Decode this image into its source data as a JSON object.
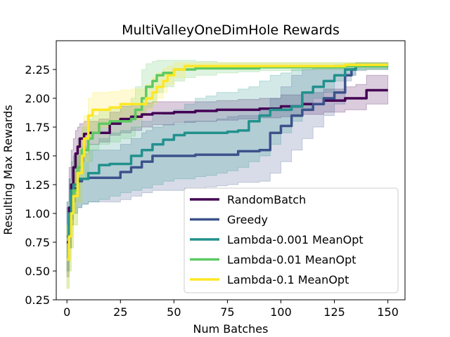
{
  "chart_data": {
    "type": "line",
    "title": "MultiValleyOneDimHole Rewards",
    "xlabel": "Num Batches",
    "ylabel": "Resulting Max Rewards",
    "xlim": [
      -5,
      158
    ],
    "ylim": [
      0.25,
      2.5
    ],
    "xticks": [
      0,
      25,
      50,
      75,
      100,
      125,
      150
    ],
    "yticks": [
      0.25,
      0.5,
      0.75,
      1.0,
      1.25,
      1.5,
      1.75,
      2.0,
      2.25
    ],
    "xtick_labels": [
      "0",
      "25",
      "50",
      "75",
      "100",
      "125",
      "150"
    ],
    "ytick_labels": [
      "0.25",
      "0.50",
      "0.75",
      "1.00",
      "1.25",
      "1.50",
      "1.75",
      "2.00",
      "2.25"
    ],
    "grid": false,
    "legend_position": "lower right",
    "series": [
      {
        "name": "RandomBatch",
        "color": "#440154",
        "x": [
          0,
          1,
          2,
          3,
          4,
          5,
          6,
          8,
          10,
          15,
          20,
          25,
          30,
          35,
          40,
          50,
          60,
          70,
          80,
          90,
          100,
          110,
          120,
          130,
          135,
          138,
          140,
          150
        ],
        "y": [
          0.75,
          1.05,
          1.25,
          1.4,
          1.52,
          1.58,
          1.65,
          1.69,
          1.7,
          1.7,
          1.78,
          1.82,
          1.84,
          1.86,
          1.87,
          1.88,
          1.89,
          1.9,
          1.9,
          1.91,
          1.93,
          1.95,
          1.98,
          2.0,
          2.0,
          2.0,
          2.07,
          2.07
        ],
        "lower": [
          0.45,
          0.7,
          0.95,
          1.1,
          1.25,
          1.35,
          1.45,
          1.55,
          1.6,
          1.62,
          1.68,
          1.7,
          1.72,
          1.75,
          1.77,
          1.79,
          1.8,
          1.81,
          1.82,
          1.83,
          1.84,
          1.86,
          1.88,
          1.9,
          1.9,
          1.9,
          1.95,
          1.95
        ],
        "upper": [
          1.05,
          1.4,
          1.55,
          1.65,
          1.72,
          1.75,
          1.78,
          1.8,
          1.8,
          1.82,
          1.88,
          1.93,
          1.95,
          1.96,
          1.97,
          1.97,
          1.97,
          1.98,
          1.99,
          2.0,
          2.03,
          2.05,
          2.08,
          2.1,
          2.12,
          2.12,
          2.2,
          2.2
        ]
      },
      {
        "name": "Greedy",
        "color": "#3b528b",
        "x": [
          0,
          1,
          2,
          3,
          5,
          7,
          10,
          15,
          20,
          25,
          30,
          35,
          37,
          40,
          45,
          50,
          55,
          60,
          65,
          70,
          75,
          80,
          90,
          95,
          100,
          105,
          110,
          115,
          120,
          125,
          130,
          133,
          135,
          140,
          150
        ],
        "y": [
          0.8,
          1.0,
          1.15,
          1.22,
          1.28,
          1.3,
          1.31,
          1.31,
          1.31,
          1.36,
          1.4,
          1.45,
          1.45,
          1.5,
          1.5,
          1.5,
          1.5,
          1.51,
          1.51,
          1.51,
          1.51,
          1.54,
          1.55,
          1.7,
          1.76,
          1.85,
          1.9,
          1.95,
          2.0,
          2.05,
          2.2,
          2.25,
          2.28,
          2.28,
          2.28
        ],
        "lower": [
          0.5,
          0.7,
          0.9,
          1.0,
          1.05,
          1.08,
          1.1,
          1.1,
          1.1,
          1.12,
          1.15,
          1.18,
          1.18,
          1.2,
          1.2,
          1.2,
          1.22,
          1.22,
          1.23,
          1.24,
          1.25,
          1.27,
          1.28,
          1.35,
          1.45,
          1.55,
          1.65,
          1.75,
          1.85,
          1.95,
          2.15,
          2.2,
          2.24,
          2.25,
          2.25
        ],
        "upper": [
          1.1,
          1.3,
          1.4,
          1.45,
          1.5,
          1.52,
          1.55,
          1.55,
          1.55,
          1.6,
          1.65,
          1.7,
          1.72,
          1.75,
          1.77,
          1.78,
          1.8,
          1.8,
          1.8,
          1.82,
          1.84,
          1.85,
          1.9,
          2.0,
          2.1,
          2.2,
          2.25,
          2.27,
          2.28,
          2.28,
          2.29,
          2.3,
          2.31,
          2.31,
          2.31
        ]
      },
      {
        "name": "Lambda-0.001 MeanOpt",
        "color": "#21918c",
        "x": [
          0,
          1,
          2,
          3,
          5,
          7,
          10,
          15,
          20,
          25,
          30,
          35,
          40,
          45,
          50,
          55,
          60,
          65,
          70,
          75,
          80,
          85,
          90,
          95,
          100,
          105,
          110,
          115,
          120,
          125,
          130,
          135,
          140,
          150
        ],
        "y": [
          0.8,
          1.0,
          1.2,
          1.25,
          1.3,
          1.3,
          1.35,
          1.42,
          1.43,
          1.43,
          1.5,
          1.55,
          1.6,
          1.64,
          1.68,
          1.7,
          1.7,
          1.7,
          1.7,
          1.71,
          1.72,
          1.8,
          1.85,
          1.9,
          1.9,
          1.93,
          2.05,
          2.1,
          2.15,
          2.2,
          2.25,
          2.28,
          2.28,
          2.28
        ],
        "lower": [
          0.5,
          0.7,
          0.9,
          1.0,
          1.05,
          1.08,
          1.1,
          1.12,
          1.15,
          1.18,
          1.2,
          1.22,
          1.25,
          1.28,
          1.3,
          1.3,
          1.32,
          1.33,
          1.35,
          1.37,
          1.4,
          1.45,
          1.5,
          1.6,
          1.7,
          1.8,
          1.9,
          2.0,
          2.05,
          2.15,
          2.2,
          2.25,
          2.25,
          2.25
        ],
        "upper": [
          1.1,
          1.3,
          1.45,
          1.5,
          1.55,
          1.58,
          1.6,
          1.65,
          1.7,
          1.72,
          1.75,
          1.8,
          1.85,
          1.88,
          1.9,
          1.95,
          2.0,
          2.02,
          2.05,
          2.05,
          2.08,
          2.1,
          2.15,
          2.2,
          2.22,
          2.25,
          2.25,
          2.28,
          2.28,
          2.29,
          2.3,
          2.31,
          2.31,
          2.31
        ]
      },
      {
        "name": "Lambda-0.01 MeanOpt",
        "color": "#5ec962",
        "x": [
          0,
          1,
          2,
          3,
          5,
          7,
          10,
          12,
          15,
          20,
          25,
          30,
          32,
          35,
          37,
          40,
          42,
          45,
          50,
          55,
          60,
          70,
          80,
          90,
          100,
          110,
          120,
          130,
          140,
          150
        ],
        "y": [
          0.6,
          0.8,
          1.0,
          1.2,
          1.4,
          1.55,
          1.65,
          1.7,
          1.78,
          1.8,
          1.8,
          1.82,
          1.9,
          2.0,
          2.1,
          2.15,
          2.2,
          2.22,
          2.25,
          2.25,
          2.26,
          2.26,
          2.26,
          2.27,
          2.27,
          2.27,
          2.27,
          2.28,
          2.28,
          2.28
        ],
        "lower": [
          0.35,
          0.5,
          0.7,
          0.9,
          1.1,
          1.3,
          1.45,
          1.55,
          1.6,
          1.62,
          1.65,
          1.67,
          1.75,
          1.85,
          1.92,
          1.97,
          2.05,
          2.1,
          2.15,
          2.18,
          2.2,
          2.22,
          2.23,
          2.24,
          2.24,
          2.25,
          2.25,
          2.25,
          2.25,
          2.25
        ],
        "upper": [
          0.9,
          1.1,
          1.3,
          1.5,
          1.65,
          1.75,
          1.82,
          1.85,
          1.9,
          1.92,
          1.95,
          2.0,
          2.1,
          2.25,
          2.3,
          2.32,
          2.33,
          2.33,
          2.33,
          2.33,
          2.32,
          2.31,
          2.31,
          2.31,
          2.31,
          2.31,
          2.31,
          2.31,
          2.31,
          2.31
        ]
      },
      {
        "name": "Lambda-0.1 MeanOpt",
        "color": "#fde725",
        "x": [
          0,
          1,
          2,
          3,
          5,
          7,
          8,
          10,
          12,
          15,
          20,
          25,
          30,
          35,
          37,
          40,
          42,
          45,
          47,
          50,
          55,
          60,
          70,
          80,
          90,
          100,
          110,
          120,
          130,
          140,
          150
        ],
        "y": [
          0.6,
          0.8,
          1.0,
          1.15,
          1.35,
          1.5,
          1.65,
          1.85,
          1.9,
          1.9,
          1.92,
          1.95,
          1.95,
          1.95,
          2.0,
          2.05,
          2.1,
          2.15,
          2.2,
          2.25,
          2.28,
          2.28,
          2.28,
          2.28,
          2.28,
          2.28,
          2.28,
          2.28,
          2.29,
          2.29,
          2.29
        ],
        "lower": [
          0.35,
          0.5,
          0.7,
          0.9,
          1.1,
          1.3,
          1.45,
          1.65,
          1.72,
          1.75,
          1.78,
          1.8,
          1.82,
          1.85,
          1.9,
          1.95,
          2.0,
          2.05,
          2.12,
          2.18,
          2.25,
          2.26,
          2.26,
          2.27,
          2.27,
          2.27,
          2.27,
          2.27,
          2.27,
          2.27,
          2.27
        ],
        "upper": [
          0.9,
          1.1,
          1.3,
          1.45,
          1.6,
          1.75,
          1.85,
          2.0,
          2.05,
          2.05,
          2.06,
          2.07,
          2.08,
          2.08,
          2.12,
          2.18,
          2.22,
          2.26,
          2.28,
          2.31,
          2.31,
          2.31,
          2.31,
          2.31,
          2.31,
          2.31,
          2.31,
          2.31,
          2.31,
          2.31,
          2.31
        ]
      }
    ]
  }
}
